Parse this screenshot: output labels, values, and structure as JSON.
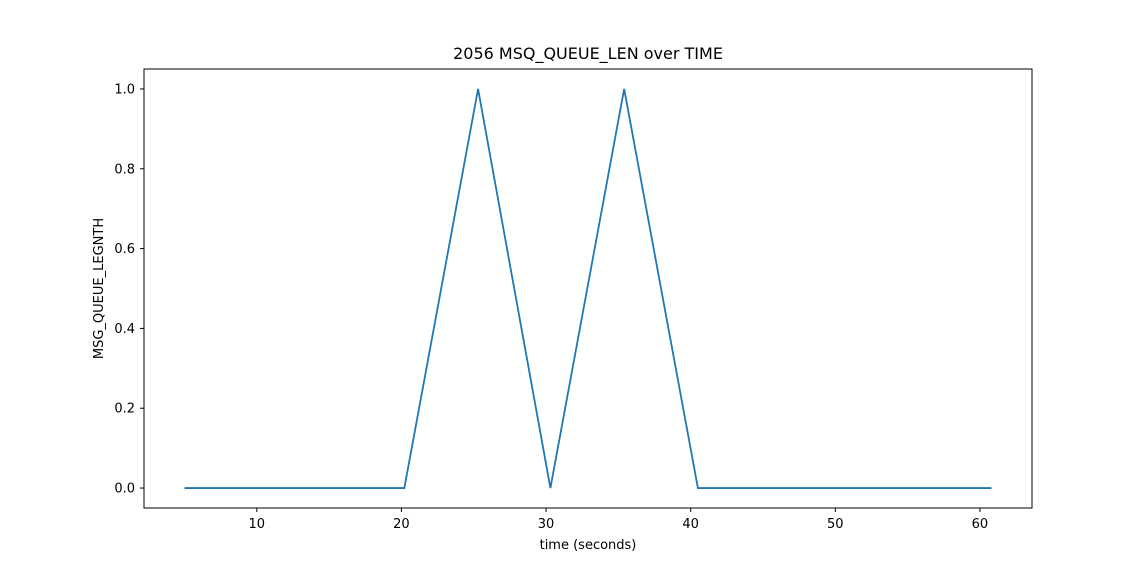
{
  "chart_data": {
    "type": "line",
    "title": "2056 MSQ_QUEUE_LEN over TIME",
    "xlabel": "time (seconds)",
    "ylabel": "MSG_QUEUE_LEGNTH",
    "xlim": [
      2.2,
      63.6
    ],
    "ylim": [
      -0.05,
      1.05
    ],
    "xticks": [
      10,
      20,
      30,
      40,
      50,
      60
    ],
    "xtick_labels": [
      "10",
      "20",
      "30",
      "40",
      "50",
      "60"
    ],
    "yticks": [
      0.0,
      0.2,
      0.4,
      0.6,
      0.8,
      1.0
    ],
    "ytick_labels": [
      "0.0",
      "0.2",
      "0.4",
      "0.6",
      "0.8",
      "1.0"
    ],
    "grid": false,
    "series": [
      {
        "color": "#1f77b4",
        "x": [
          5.0,
          20.2,
          25.3,
          30.3,
          35.4,
          40.5,
          60.8
        ],
        "y": [
          0,
          0,
          1,
          0,
          1,
          0,
          0
        ]
      }
    ]
  }
}
